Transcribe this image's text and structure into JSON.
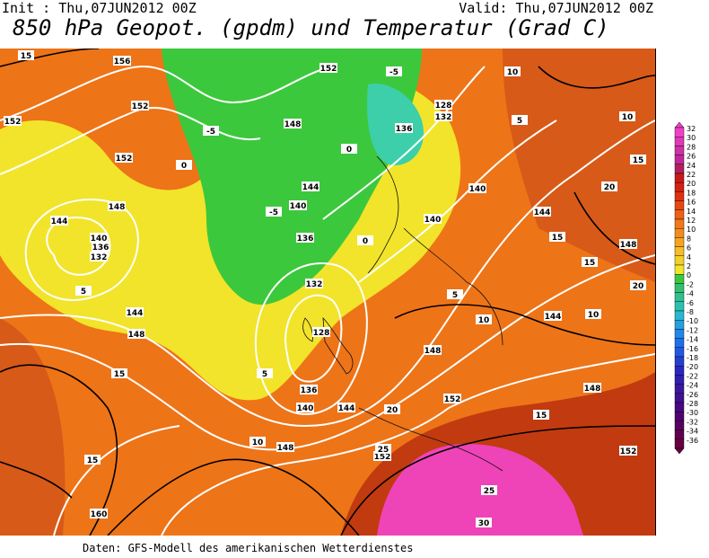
{
  "header": {
    "init": "Init : Thu,07JUN2012 00Z",
    "valid": "Valid: Thu,07JUN2012 00Z",
    "title": "850 hPa Geopot. (gpdm) und Temperatur (Grad C)"
  },
  "footer": "Daten: GFS-Modell des amerikanischen Wetterdienstes",
  "colors": {
    "magenta": "#f040c8",
    "red": "#d42010",
    "orange": "#ee7418",
    "yellow": "#f2e42a",
    "green": "#3cc83c",
    "teal": "#3ccfaa"
  },
  "legend": {
    "labels": [
      "32",
      "30",
      "28",
      "26",
      "24",
      "22",
      "20",
      "18",
      "16",
      "14",
      "12",
      "10",
      "8",
      "6",
      "4",
      "2",
      "0",
      "-2",
      "-4",
      "-6",
      "-8",
      "-10",
      "-12",
      "-14",
      "-16",
      "-18",
      "-20",
      "-22",
      "-24",
      "-26",
      "-28",
      "-30",
      "-32",
      "-34",
      "-36"
    ]
  },
  "geopotential_labels": [
    "156",
    "152",
    "152",
    "152",
    "148",
    "144",
    "140",
    "136",
    "132",
    "144",
    "148",
    "160",
    "152",
    "148",
    "144",
    "140",
    "136",
    "132",
    "128",
    "136",
    "140",
    "144",
    "148",
    "152",
    "152",
    "148",
    "140",
    "136",
    "132",
    "128",
    "140",
    "144",
    "148",
    "144",
    "148",
    "152"
  ],
  "temperature_labels": [
    "15",
    "10",
    "5",
    "0",
    "-5",
    "-5",
    "0",
    "5",
    "10",
    "15",
    "20",
    "25",
    "30",
    "15",
    "20",
    "25",
    "15",
    "10",
    "5",
    "-5",
    "0",
    "5",
    "10",
    "15",
    "20",
    "15",
    "10",
    "15"
  ]
}
